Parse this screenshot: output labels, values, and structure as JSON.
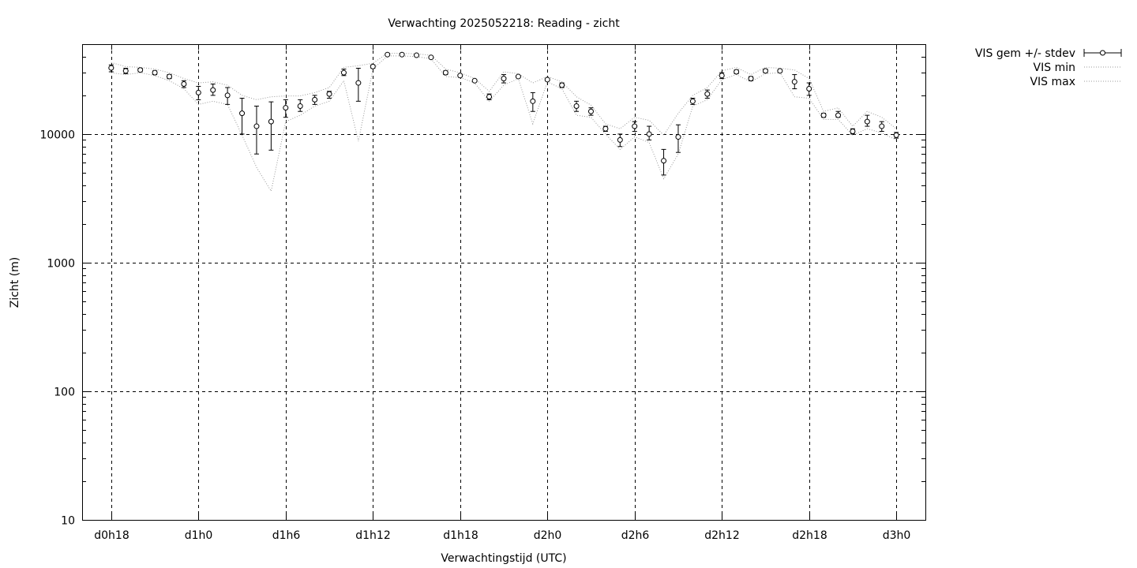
{
  "chart_data": {
    "type": "line",
    "title": "Verwachting 2025052218: Reading - zicht",
    "xlabel": "Verwachtingstijd (UTC)",
    "ylabel": "Zicht (m)",
    "yscale": "log",
    "ylim": [
      10,
      50000
    ],
    "xlim": [
      -2,
      56
    ],
    "grid": true,
    "legend_position": "top-right outside",
    "x_ticks": [
      {
        "x": 0,
        "label": "d0h18"
      },
      {
        "x": 6,
        "label": "d1h0"
      },
      {
        "x": 12,
        "label": "d1h6"
      },
      {
        "x": 18,
        "label": "d1h12"
      },
      {
        "x": 24,
        "label": "d1h18"
      },
      {
        "x": 30,
        "label": "d2h0"
      },
      {
        "x": 36,
        "label": "d2h6"
      },
      {
        "x": 42,
        "label": "d2h12"
      },
      {
        "x": 48,
        "label": "d2h18"
      },
      {
        "x": 54,
        "label": "d3h0"
      }
    ],
    "y_ticks": [
      {
        "y": 10,
        "label": "10"
      },
      {
        "y": 100,
        "label": "100"
      },
      {
        "y": 1000,
        "label": "1000"
      },
      {
        "y": 10000,
        "label": "10000"
      }
    ],
    "x": [
      0,
      1,
      2,
      3,
      4,
      5,
      6,
      7,
      8,
      9,
      10,
      11,
      12,
      13,
      14,
      15,
      16,
      17,
      18,
      19,
      20,
      21,
      22,
      23,
      24,
      25,
      26,
      27,
      28,
      29,
      30,
      31,
      32,
      33,
      34,
      35,
      36,
      37,
      38,
      39,
      40,
      41,
      42,
      43,
      44,
      45,
      46,
      47,
      48,
      49,
      50,
      51,
      52,
      53,
      54
    ],
    "series": [
      {
        "name": "VIS gem +/- stdev",
        "values": [
          32700,
          31000,
          31500,
          30000,
          28000,
          24500,
          21000,
          22000,
          20000,
          14500,
          11500,
          12500,
          16000,
          16500,
          18500,
          20500,
          30000,
          25000,
          33500,
          41500,
          41500,
          41000,
          39500,
          30000,
          28500,
          26000,
          19500,
          27000,
          28000,
          18000,
          26500,
          24000,
          16500,
          15000,
          11000,
          9000,
          11500,
          10000,
          6200,
          9500,
          18000,
          20500,
          28500,
          30500,
          27000,
          31000,
          31000,
          25500,
          22500,
          14000,
          14000,
          10500,
          12500,
          11500,
          9800
        ],
        "err_low": [
          30500,
          29500,
          30500,
          29000,
          27000,
          23000,
          18500,
          20000,
          17000,
          10000,
          7000,
          7500,
          13500,
          15000,
          17000,
          19000,
          28500,
          18000,
          32500,
          41000,
          41000,
          40500,
          39000,
          29000,
          28000,
          25500,
          18500,
          25000,
          27500,
          15000,
          26000,
          23000,
          15000,
          14000,
          10500,
          8000,
          10500,
          9000,
          4800,
          7200,
          17000,
          19000,
          27000,
          29500,
          26000,
          30000,
          30500,
          22500,
          20000,
          13500,
          13500,
          10000,
          11500,
          10500,
          9300
        ],
        "err_high": [
          34500,
          32500,
          32500,
          31000,
          29000,
          26000,
          23500,
          24500,
          23000,
          19000,
          16500,
          17800,
          18500,
          18500,
          20000,
          21500,
          32000,
          32500,
          34500,
          42000,
          42000,
          41500,
          40000,
          31000,
          29000,
          26500,
          20500,
          29000,
          28500,
          21000,
          27000,
          25000,
          18000,
          16000,
          11500,
          10000,
          12500,
          11500,
          7600,
          11800,
          19000,
          22000,
          30000,
          31500,
          28000,
          32000,
          31500,
          29000,
          25000,
          14500,
          15000,
          11000,
          14000,
          12500,
          10300
        ]
      },
      {
        "name": "VIS min",
        "values": [
          30000,
          29000,
          30000,
          28500,
          26000,
          22500,
          17000,
          18000,
          17000,
          9800,
          5500,
          3600,
          12500,
          14000,
          16500,
          18000,
          26000,
          8800,
          32000,
          40500,
          40500,
          40000,
          38500,
          28000,
          27500,
          25000,
          18000,
          24000,
          27000,
          12000,
          25500,
          22500,
          14000,
          13500,
          10000,
          7600,
          9500,
          8600,
          4500,
          7000,
          16500,
          18500,
          26500,
          29000,
          25500,
          29500,
          30000,
          19500,
          19000,
          13000,
          13000,
          9800,
          11000,
          10200,
          9000
        ]
      },
      {
        "name": "VIS max",
        "values": [
          36000,
          33500,
          33000,
          32000,
          30000,
          27000,
          25000,
          25500,
          24000,
          20000,
          18500,
          19500,
          19800,
          19800,
          21000,
          23000,
          33000,
          34000,
          35500,
          42500,
          42500,
          42000,
          41000,
          32000,
          30000,
          27000,
          21500,
          30500,
          29500,
          25000,
          28000,
          25500,
          19500,
          16800,
          12000,
          11000,
          13500,
          12800,
          9800,
          14500,
          20000,
          23000,
          31000,
          33000,
          29000,
          33000,
          32500,
          31500,
          27000,
          15000,
          16000,
          11500,
          15000,
          13500,
          11000
        ]
      }
    ]
  }
}
